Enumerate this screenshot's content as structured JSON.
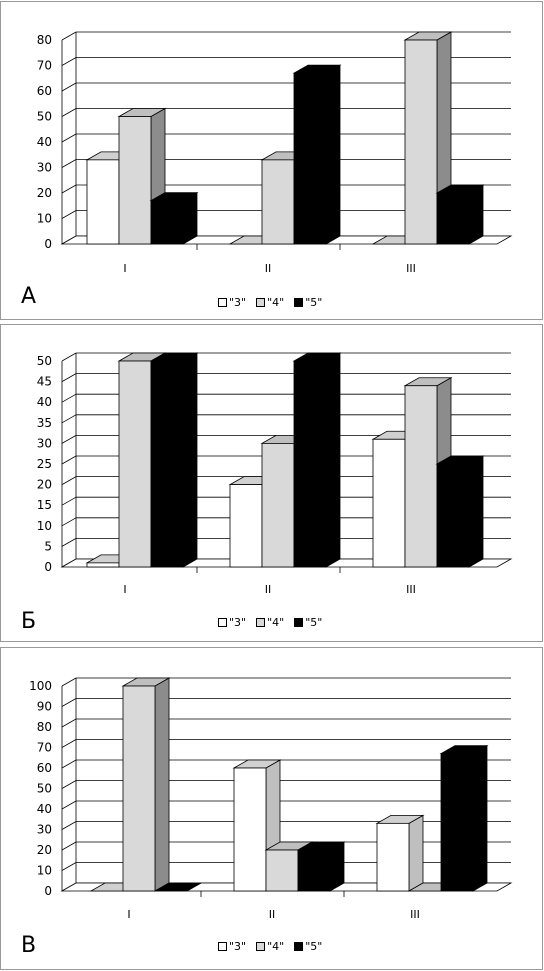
{
  "colors": {
    "grade3": "#ffffff",
    "grade4": "#d9d9d9",
    "grade5": "#000000",
    "grade4_side": "#8c8c8c",
    "grade4_top": "#bfbfbf",
    "grade5_side": "#000000",
    "grade3_side": "#bfbfbf",
    "grade3_top": "#d0d0d0",
    "grid": "#000000"
  },
  "chart_data": [
    {
      "type": "bar",
      "panel_label": "А",
      "categories": [
        "I",
        "II",
        "III"
      ],
      "ylim": [
        0,
        80
      ],
      "ytick_labels": [
        "0",
        "10",
        "20",
        "30",
        "40",
        "50",
        "60",
        "70",
        "80"
      ],
      "series": [
        {
          "name": "\"3\"",
          "values": [
            33,
            0,
            0
          ]
        },
        {
          "name": "\"4\"",
          "values": [
            50,
            33,
            80
          ]
        },
        {
          "name": "\"5\"",
          "values": [
            17,
            67,
            20
          ]
        }
      ],
      "legend": [
        "\"3\"",
        "\"4\"",
        "\"5\""
      ],
      "legend_position": "bottom",
      "grid": true
    },
    {
      "type": "bar",
      "panel_label": "Б",
      "categories": [
        "I",
        "II",
        "III"
      ],
      "ylim": [
        0,
        50
      ],
      "ytick_labels": [
        "0",
        "5",
        "10",
        "15",
        "20",
        "25",
        "30",
        "35",
        "40",
        "45",
        "50"
      ],
      "series": [
        {
          "name": "\"3\"",
          "values": [
            1,
            20,
            31
          ]
        },
        {
          "name": "\"4\"",
          "values": [
            50,
            30,
            44
          ]
        },
        {
          "name": "\"5\"",
          "values": [
            50,
            50,
            25
          ]
        }
      ],
      "legend": [
        "\"3\"",
        "\"4\"",
        "\"5\""
      ],
      "legend_position": "bottom",
      "grid": true
    },
    {
      "type": "bar",
      "panel_label": "В",
      "categories": [
        "I",
        "II",
        "III"
      ],
      "ylim": [
        0,
        100
      ],
      "ytick_labels": [
        "0",
        "10",
        "20",
        "30",
        "40",
        "50",
        "60",
        "70",
        "80",
        "90",
        "100"
      ],
      "series": [
        {
          "name": "\"3\"",
          "values": [
            0,
            60,
            33
          ]
        },
        {
          "name": "\"4\"",
          "values": [
            100,
            20,
            0
          ]
        },
        {
          "name": "\"5\"",
          "values": [
            0,
            20,
            67
          ]
        }
      ],
      "legend": [
        "\"3\"",
        "\"4\"",
        "\"5\""
      ],
      "legend_position": "bottom",
      "grid": true
    }
  ]
}
